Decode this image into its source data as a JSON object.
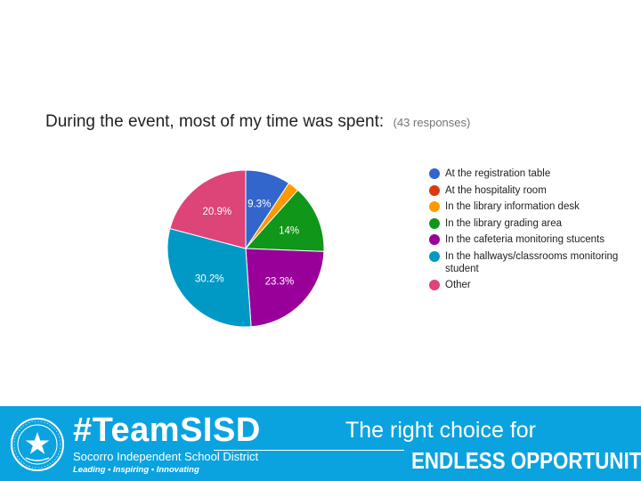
{
  "chart_data": {
    "type": "pie",
    "title": "During the event, most of my time was spent:",
    "subtitle": "(43 responses)",
    "slices": [
      {
        "name": "At the registration table",
        "value": 9.3,
        "label": "9.3%",
        "color": "#3366cc"
      },
      {
        "name": "At the hospitality room",
        "value": 0,
        "label": "",
        "color": "#dc3912"
      },
      {
        "name": "In the library information desk",
        "value": 2.3,
        "label": "",
        "color": "#ff9900"
      },
      {
        "name": "In the library grading area",
        "value": 14.0,
        "label": "14%",
        "color": "#109618"
      },
      {
        "name": "In the cafeteria monitoring stucents",
        "value": 23.3,
        "label": "23.3%",
        "color": "#990099"
      },
      {
        "name": "In the hallways/classrooms monitoring student",
        "value": 30.2,
        "label": "30.2%",
        "color": "#0099c6"
      },
      {
        "name": "Other",
        "value": 20.9,
        "label": "20.9%",
        "color": "#dd4477"
      }
    ],
    "start_angle_deg": 0,
    "direction": "clockwise",
    "legend_position": "right"
  },
  "footer": {
    "hashtag": "#TeamSISD",
    "district_name": "Socorro Independent School District",
    "motto": "Leading • Inspiring • Innovating",
    "tagline_top": "The right choice for",
    "tagline_bottom": "ENDLESS OPPORTUNITIES.",
    "seal_icon": "school-district-seal-icon",
    "background_color": "#0aa3e0"
  }
}
